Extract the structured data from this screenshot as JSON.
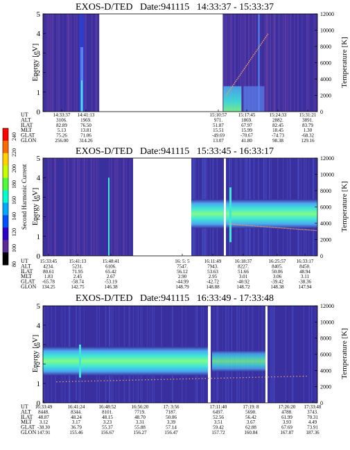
{
  "colors": {
    "bg_spectrogram": "#3a2f9e",
    "bg_alt": "#2f3fc8",
    "line_band_low": "#5a7fe8",
    "band_core": "#7ffb8a",
    "band_mid": "#3fe6d8",
    "band_edge": "#4da8f0",
    "temp_trace": "#e89a6a",
    "gap": "#ffffff"
  },
  "colorbar": {
    "label": "Second Harmonic Current",
    "ticks": [
      "240",
      "220",
      "200",
      "180",
      "160",
      "140",
      "120",
      "100",
      "80"
    ],
    "colors": [
      "#ff0000",
      "#ff6a00",
      "#ffd200",
      "#c8ff00",
      "#4dff3a",
      "#00ffd0",
      "#00a8ff",
      "#0050ff",
      "#2a00c8",
      "#5a2a9a",
      "#000000"
    ]
  },
  "chart_data": [
    {
      "type": "heatmap",
      "title": "EXOS-D/TED   Date:941115   14:33:37 - 15:33:37",
      "ylabel": "Energy [eV]",
      "ylabel_right": "Temperature [K]",
      "ylim": [
        0,
        5
      ],
      "yticks": [
        0,
        1,
        2,
        3,
        4,
        5
      ],
      "ylim_right": [
        0,
        12000
      ],
      "yticks_right": [
        0,
        2000,
        4000,
        6000,
        8000,
        10000,
        12000
      ],
      "data_gap_fraction": [
        0.205,
        0.655
      ],
      "axis_labels": [
        "UT",
        "ALT",
        "ILAT",
        "MLT",
        "GLAT",
        "GLON"
      ],
      "ephemeris": [
        {
          "UT": "14:33:37",
          "ALT": "3106.",
          "ILAT": "82.89",
          "MLT": "5.13",
          "GLAT": "75.26",
          "GLON": "256.00"
        },
        {
          "UT": "14:41:13",
          "ALT": "1969.",
          "ILAT": "76.50",
          "MLT": "13.81",
          "GLAT": "71.06",
          "GLON": "314.26"
        },
        {
          "UT": "15:10:57",
          "ALT": "971.",
          "ILAT": "51.87",
          "MLT": "15.51",
          "GLAT": "-49.69",
          "GLON": "13.07"
        },
        {
          "UT": "15:17:45",
          "ALT": "1869.",
          "ILAT": "67.97",
          "MLT": "15.99",
          "GLAT": "-70.67",
          "GLON": "41.80"
        },
        {
          "UT": "15:24:33",
          "ALT": "2882.",
          "ILAT": "82.45",
          "MLT": "18.45",
          "GLAT": "-74.73",
          "GLON": "98.38"
        },
        {
          "UT": "15:31:21",
          "ALT": "3891.",
          "ILAT": "83.79",
          "MLT": "1.30",
          "GLAT": "-68.32",
          "GLON": "129.16"
        }
      ]
    },
    {
      "type": "heatmap",
      "title": "EXOS-D/TED   Date:941115   15:33:45 - 16:33:17",
      "ylabel": "Energy [eV]",
      "ylabel_right": "Temperature [K]",
      "ylim": [
        0,
        5
      ],
      "yticks": [
        0,
        1,
        2,
        3,
        4,
        5
      ],
      "ylim_right": [
        0,
        12000
      ],
      "yticks_right": [
        0,
        2000,
        4000,
        6000,
        8000,
        10000,
        12000
      ],
      "axis_labels": [
        "UT",
        "ALT",
        "ILAT",
        "MLT",
        "GLAT",
        "GLON"
      ],
      "ephemeris": [
        {
          "UT": "15:33:45",
          "ALT": "4234.",
          "ILAT": "80.61",
          "MLT": "1.83",
          "GLAT": "-65.78",
          "GLON": "134.25"
        },
        {
          "UT": "15:41:13",
          "ALT": "5231.",
          "ILAT": "71.95",
          "MLT": "2.45",
          "GLAT": "-58.74",
          "GLON": "142.75"
        },
        {
          "UT": "15:48:41",
          "ALT": "6106.",
          "ILAT": "65.42",
          "MLT": "2.67",
          "GLAT": "-53.19",
          "GLON": "146.38"
        },
        {
          "UT": "16: 5: 5",
          "ALT": "7547.",
          "ILAT": "56.12",
          "MLT": "2.90",
          "GLAT": "-44.99",
          "GLON": "148.79"
        },
        {
          "UT": "16:11:49",
          "ALT": "7943.",
          "ILAT": "53.63",
          "MLT": "2.95",
          "GLAT": "-42.72",
          "GLON": "148.88"
        },
        {
          "UT": "16:18:37",
          "ALT": "8227.",
          "ILAT": "51.66",
          "MLT": "3.01",
          "GLAT": "-40.92",
          "GLON": "148.72"
        },
        {
          "UT": "16:25:57",
          "ALT": "8405.",
          "ILAT": "50.06",
          "MLT": "3.06",
          "GLAT": "-39.42",
          "GLON": "148.38"
        },
        {
          "UT": "16:33:17",
          "ALT": "8450.",
          "ILAT": "48.94",
          "MLT": "3.11",
          "GLAT": "-38.36",
          "GLON": "147.94"
        }
      ]
    },
    {
      "type": "heatmap",
      "title": "EXOS-D/TED   Date:941115   16:33:49 - 17:33:48",
      "ylabel": "Energy [eV]",
      "ylabel_right": "Temperature [K]",
      "ylim": [
        0,
        5
      ],
      "yticks": [
        0,
        1,
        2,
        3,
        4,
        5
      ],
      "ylim_right": [
        0,
        12000
      ],
      "yticks_right": [
        0,
        2000,
        4000,
        6000,
        8000,
        10000,
        12000
      ],
      "axis_labels": [
        "UT",
        "ALT",
        "ILAT",
        "MLT",
        "GLAT",
        "GLON"
      ],
      "ephemeris": [
        {
          "UT": "16:33:49",
          "ALT": "8448.",
          "ILAT": "48.87",
          "MLT": "3.12",
          "GLAT": "-38.30",
          "GLON": "147.91"
        },
        {
          "UT": "16:41:24",
          "ALT": "8344.",
          "ILAT": "48.24",
          "MLT": "3.17",
          "GLAT": "36.79",
          "GLON": "155.46"
        },
        {
          "UT": "16:48:52",
          "ALT": "8101.",
          "ILAT": "48.15",
          "MLT": "3.23",
          "GLAT": "55.37",
          "GLON": "156.67"
        },
        {
          "UT": "16:56:20",
          "ALT": "7719.",
          "ILAT": "48.70",
          "MLT": "3.31",
          "GLAT": "55.88",
          "GLON": "156.27"
        },
        {
          "UT": "17: 3:56",
          "ALT": "7187.",
          "ILAT": "50.06",
          "MLT": "3.39",
          "GLAT": "57.14",
          "GLON": "156.47"
        },
        {
          "UT": "17:11:40",
          "ALT": "6497.",
          "ILAT": "52.56",
          "MLT": "3.51",
          "GLAT": "59.42",
          "GLON": "157.72"
        },
        {
          "UT": "17:19: 8",
          "ALT": "5690.",
          "ILAT": "56.42",
          "MLT": "3.67",
          "GLAT": "62.88",
          "GLON": "160.84"
        },
        {
          "UT": "17:26:20",
          "ALT": "4788.",
          "ILAT": "61.99",
          "MLT": "3.93",
          "GLAT": "67.69",
          "GLON": "167.87"
        },
        {
          "UT": "17:33:48",
          "ALT": "3743.",
          "ILAT": "70.31",
          "MLT": "4.49",
          "GLAT": "73.91",
          "GLON": "187.36"
        }
      ]
    }
  ]
}
